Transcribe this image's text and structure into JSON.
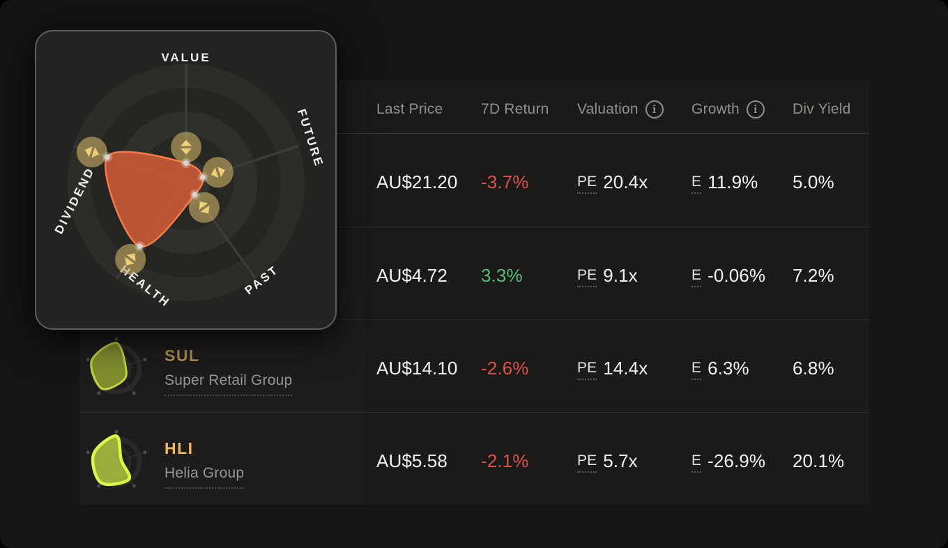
{
  "theme": {
    "colors": {
      "page-bg": "#161514",
      "table-bg": "#1b1a18",
      "ticker-col-bg": "#1d1c1a",
      "separator": "#2b2b29",
      "header-sep": "#3a3a38",
      "header-text": "#8f8f8d",
      "value-text": "#f3f3f1",
      "muted-text": "#969694",
      "red": "#dc5147",
      "green": "#58b97d",
      "ticker-sul": "#ac9055",
      "ticker-hli": "#eeba60",
      "popup-bg": "#232321",
      "popup-border": "#5e5e5c"
    }
  },
  "table": {
    "info_glyph": "i",
    "columns": [
      {
        "label": "Last Price",
        "info": false
      },
      {
        "label": "7D Return",
        "info": false
      },
      {
        "label": "Valuation",
        "info": true
      },
      {
        "label": "Growth",
        "info": true
      },
      {
        "label": "Div Yield",
        "info": false
      }
    ],
    "rows": [
      {
        "last_price": "AU$21.20",
        "return_7d": "-3.7%",
        "return_dir": "down",
        "valuation_abbr": "PE",
        "valuation": "20.4x",
        "growth_abbr": "E",
        "growth": "11.9%",
        "div_yield": "5.0%"
      },
      {
        "last_price": "AU$4.72",
        "return_7d": "3.3%",
        "return_dir": "up",
        "valuation_abbr": "PE",
        "valuation": "9.1x",
        "growth_abbr": "E",
        "growth": "-0.06%",
        "div_yield": "7.2%"
      },
      {
        "ticker": "SUL",
        "company": "Super Retail Group",
        "last_price": "AU$14.10",
        "return_7d": "-2.6%",
        "return_dir": "down",
        "valuation_abbr": "PE",
        "valuation": "14.4x",
        "growth_abbr": "E",
        "growth": "6.3%",
        "div_yield": "6.8%"
      },
      {
        "ticker": "HLI",
        "company": "Helia Group",
        "last_price": "AU$5.58",
        "return_7d": "-2.1%",
        "return_dir": "down",
        "valuation_abbr": "PE",
        "valuation": "5.7x",
        "growth_abbr": "E",
        "growth": "-26.9%",
        "div_yield": "20.1%"
      }
    ]
  },
  "snowflake": {
    "axes": [
      "VALUE",
      "FUTURE",
      "PAST",
      "HEALTH",
      "DIVIDEND"
    ]
  },
  "chart_data": [
    {
      "type": "radar",
      "name": "hovered-snowflake-popup",
      "axes": [
        "VALUE",
        "FUTURE",
        "PAST",
        "HEALTH",
        "DIVIDEND"
      ],
      "values": [
        0.82,
        0.74,
        0.62,
        3.32,
        3.5
      ],
      "max": 5,
      "fill": "#c25836",
      "stroke": "#f97a48"
    },
    {
      "type": "radar",
      "name": "SUL-snowflake",
      "axes": [
        "VALUE",
        "FUTURE",
        "PAST",
        "HEALTH",
        "DIVIDEND"
      ],
      "values": [
        4.3,
        1.6,
        2.2,
        4.1,
        4.35
      ],
      "max": 5,
      "fill": "#8c9a32",
      "stroke": "#c2d33f",
      "stroke_width": 3
    },
    {
      "type": "radar",
      "name": "HLI-snowflake",
      "axes": [
        "VALUE",
        "FUTURE",
        "PAST",
        "HEALTH",
        "DIVIDEND"
      ],
      "values": [
        4.25,
        0.85,
        3.6,
        4.35,
        4.0
      ],
      "max": 5,
      "fill": "#a8be3e",
      "stroke": "#dcf546",
      "stroke_width": 4.5
    }
  ]
}
